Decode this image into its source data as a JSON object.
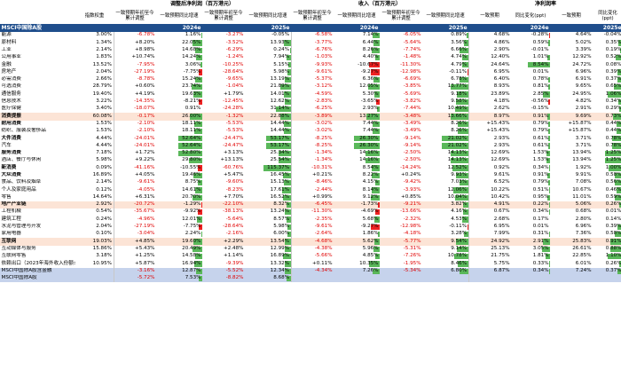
{
  "header": {
    "groups": [
      "调整后净利润（百万港元）",
      "收入（百万港元）",
      "净利润率"
    ],
    "col_label": "指数权重",
    "subheads": [
      "一致预期年初至今累计调整",
      "一致预期同比增速",
      "一致预期年初至今累计调整",
      "一致预期同比增速",
      "一致预期年初至今累计调整",
      "一致预期同比增速",
      "一致预期年初至今累计调整",
      "一致预期同比增速",
      "一致预期",
      "同比变化(ppt)",
      "一致预期",
      "同比变化(ppt)"
    ],
    "index_label": "MSCI中国除A股",
    "years": [
      "2024e",
      "2025e",
      "2024e",
      "2025e",
      "2024e",
      "2025e"
    ]
  },
  "rows": [
    {
      "name": "能源",
      "type": "n",
      "v": [
        "3.00%",
        "-6.78%",
        "1.16%",
        "-3.27%",
        "-0.05%",
        "-6.58%",
        "7.14%",
        "-6.05%",
        "0.89%",
        "4.68%",
        "-0.28%",
        "4.64%",
        "-0.04%"
      ]
    },
    {
      "name": "原材料",
      "type": "n",
      "v": [
        "1.34%",
        "+8.20%",
        "22.05%",
        "-3.52%",
        "13.93%",
        "-3.77%",
        "6.44%",
        "-5.64%",
        "3.56%",
        "4.86%",
        "0.59%",
        "5.02%",
        "0.35%"
      ]
    },
    {
      "name": "工业",
      "type": "n",
      "v": [
        "2.14%",
        "+8.98%",
        "14.68%",
        "-6.29%",
        "0.24%",
        "-6.76%",
        "8.26%",
        "-7.74%",
        "6.66%",
        "2.90%",
        "-0.01%",
        "3.39%",
        "0.19%"
      ]
    },
    {
      "name": "公用事业",
      "type": "n",
      "v": [
        "1.83%",
        "+10.74%",
        "14.24%",
        "-1.24%",
        "7.94%",
        "-1.03%",
        "4.40%",
        "-1.48%",
        "4.74%",
        "12.40%",
        "1.01%",
        "12.92%",
        "0.52%"
      ]
    },
    {
      "name": "金融",
      "type": "n",
      "v": [
        "13.52%",
        "-7.95%",
        "3.06%",
        "-10.25%",
        "5.15%",
        "-9.93%",
        "-10.67%",
        "-11.30%",
        "4.79%",
        "24.64%",
        "8.54%",
        "24.72%",
        "0.08%"
      ]
    },
    {
      "name": "房地产",
      "type": "n",
      "v": [
        "2.04%",
        "-27.19%",
        "-7.75%",
        "-28.64%",
        "5.98%",
        "-9.61%",
        "-9.27%",
        "-12.98%",
        "-0.11%",
        "6.95%",
        "0.01%",
        "6.96%",
        "0.39%"
      ]
    },
    {
      "name": "必需消费",
      "type": "n",
      "v": [
        "2.66%",
        "-8.78%",
        "15.24%",
        "-9.65%",
        "13.19%",
        "-5.37%",
        "6.36%",
        "-6.69%",
        "6.78%",
        "6.40%",
        "0.78%",
        "6.91%",
        "0.37%"
      ]
    },
    {
      "name": "可选消费",
      "type": "n",
      "v": [
        "28.79%",
        "+0.60%",
        "23.74%",
        "-1.04%",
        "21.89%",
        "-3.12%",
        "12.05%",
        "-3.85%",
        "13.77%",
        "8.93%",
        "0.81%",
        "9.65%",
        "0.65%"
      ]
    },
    {
      "name": "通信服务",
      "type": "n",
      "v": [
        "19.40%",
        "+4.19%",
        "19.63%",
        "+1.79%",
        "14.01%",
        "-4.59%",
        "5.30%",
        "-5.69%",
        "9.18%",
        "23.89%",
        "2.85%",
        "24.95%",
        "1.06%"
      ]
    },
    {
      "name": "信息技术",
      "type": "n",
      "v": [
        "3.22%",
        "-14.35%",
        "-8.21%",
        "-12.45%",
        "12.62%",
        "-2.83%",
        "-3.65%",
        "-3.82%",
        "9.58%",
        "4.18%",
        "-0.56%",
        "4.82%",
        "0.34%"
      ]
    },
    {
      "name": "医疗保健",
      "type": "n",
      "v": [
        "3.40%",
        "-18.07%",
        "0.91%",
        "-24.28%",
        "31.14%",
        "-6.25%",
        "2.93%",
        "-7.44%",
        "10.49%",
        "2.62%",
        "-0.15%",
        "2.91%",
        "0.29%"
      ]
    },
    {
      "name": "消费提振",
      "type": "h",
      "v": [
        "60.08%",
        "-0.17%",
        "26.00%",
        "-1.32%",
        "22.88%",
        "-3.89%",
        "13.27%",
        "-3.48%",
        "13.66%",
        "8.97%",
        "0.91%",
        "9.69%",
        "0.73%"
      ]
    },
    {
      "name": "耐用消费",
      "type": "s",
      "v": [
        "1.53%",
        "-2.10%",
        "18.11%",
        "-5.53%",
        "14.44%",
        "-3.02%",
        "7.44%",
        "-3.49%",
        "8.26%",
        "+15.43%",
        "0.79%",
        "+15.87%",
        "0.44%"
      ]
    },
    {
      "name": "纺织、服装及奢侈品",
      "type": "n",
      "v": [
        "1.53%",
        "-2.10%",
        "18.11%",
        "-5.53%",
        "14.44%",
        "-3.02%",
        "7.44%",
        "-3.49%",
        "8.26%",
        "+15.43%",
        "0.79%",
        "+15.87%",
        "0.44%"
      ]
    },
    {
      "name": "大件消费",
      "type": "s",
      "v": [
        "4.44%",
        "-24.01%",
        "52.64%",
        "-24.47%",
        "53.17%",
        "-8.25%",
        "26.30%",
        "-9.14%",
        "21.02%",
        "2.93%",
        "0.61%",
        "3.71%",
        "0.78%"
      ]
    },
    {
      "name": "汽车",
      "type": "n",
      "v": [
        "4.44%",
        "-24.01%",
        "52.64%",
        "-24.47%",
        "53.17%",
        "-8.25%",
        "26.30%",
        "-9.14%",
        "21.02%",
        "2.93%",
        "0.61%",
        "3.71%",
        "0.78%"
      ]
    },
    {
      "name": "服务消费",
      "type": "s",
      "v": [
        "7.18%",
        "+1.72%",
        "52.80%",
        "+3.13%",
        "25.34%",
        "-1.34%",
        "14.16%",
        "-2.50%",
        "14.13%",
        "12.69%",
        "1.53%",
        "13.94%",
        "1.25%"
      ]
    },
    {
      "name": "酒店、餐厅与休闲",
      "type": "n",
      "v": [
        "5.98%",
        "+9.22%",
        "29.80%",
        "+13.13%",
        "25.54%",
        "-1.34%",
        "14.16%",
        "-2.50%",
        "14.13%",
        "12.69%",
        "1.53%",
        "13.94%",
        "1.25%"
      ]
    },
    {
      "name": "新消费",
      "type": "s",
      "v": [
        "0.09%",
        "-41.16%",
        "-10.55%",
        "-60.76%",
        "115.37%",
        "-10.31%",
        "8.54%",
        "-14.24%",
        "12.52%",
        "0.92%",
        "0.34%",
        "1.92%",
        "1.00%"
      ]
    },
    {
      "name": "大众消费",
      "type": "s",
      "v": [
        "16.89%",
        "+4.05%",
        "19.46%",
        "+5.47%",
        "16.45%",
        "+0.21%",
        "8.22%",
        "+0.24%",
        "9.93%",
        "9.61%",
        "0.91%",
        "9.91%",
        "0.58%"
      ]
    },
    {
      "name": "食品、饮料及烟草",
      "type": "n",
      "v": [
        "2.14%",
        "-9.61%",
        "8.75%",
        "-9.60%",
        "15.13%",
        "-8.46%",
        "4.15%",
        "-9.42%",
        "7.03%",
        "6.52%",
        "0.79%",
        "7.08%",
        "0.56%"
      ]
    },
    {
      "name": "个人及家庭用品",
      "type": "n",
      "v": [
        "0.12%",
        "-4.05%",
        "14.61%",
        "-8.23%",
        "17.61%",
        "-2.44%",
        "8.14%",
        "-3.93%",
        "12.06%",
        "10.22%",
        "0.51%",
        "10.67%",
        "0.46%"
      ]
    },
    {
      "name": "零售",
      "type": "n",
      "v": [
        "14.64%",
        "+6.31%",
        "20.70%",
        "+7.70%",
        "16.52%",
        "+0.99%",
        "9.12%",
        "+0.85%",
        "10.04%",
        "10.42%",
        "0.95%",
        "11.01%",
        "0.59%"
      ]
    },
    {
      "name": "地产产业链",
      "type": "h",
      "v": [
        "2.92%",
        "-20.72%",
        "-1.29%",
        "-22.10%",
        "8.32%",
        "-6.45%",
        "-1.73%",
        "-9.21%",
        "3.82%",
        "4.91%",
        "0.22%",
        "5.06%",
        "0.26%"
      ]
    },
    {
      "name": "工程机械",
      "type": "n",
      "v": [
        "0.54%",
        "-35.67%",
        "-9.92%",
        "-38.13%",
        "13.24%",
        "-11.30%",
        "-4.69%",
        "-13.66%",
        "4.16%",
        "0.67%",
        "0.34%",
        "0.68%",
        "0.01%"
      ]
    },
    {
      "name": "建筑工程",
      "type": "n",
      "v": [
        "0.24%",
        "-4.96%",
        "12.01%",
        "-5.64%",
        "8.57%",
        "-2.35%",
        "5.68%",
        "-2.32%",
        "4.53%",
        "2.68%",
        "0.17%",
        "2.80%",
        "0.14%"
      ]
    },
    {
      "name": "水泥与管理与开发",
      "type": "n",
      "v": [
        "2.04%",
        "-27.19%",
        "-7.75%",
        "-28.64%",
        "5.98%",
        "-9.61%",
        "-9.27%",
        "-12.98%",
        "-0.11%",
        "6.95%",
        "0.01%",
        "6.96%",
        "0.39%"
      ]
    },
    {
      "name": "家用电器",
      "type": "n",
      "v": [
        "0.10%",
        "-3.04%",
        "2.24%",
        "-2.16%",
        "6.00%",
        "-2.64%",
        "1.86%",
        "-4.18%",
        "3.28%",
        "7.99%",
        "0.31%",
        "7.36%",
        "0.58%"
      ]
    },
    {
      "name": "互联网",
      "type": "h",
      "v": [
        "19.03%",
        "+4.85%",
        "19.60%",
        "+2.29%",
        "13.54%",
        "-4.68%",
        "5.62%",
        "-5.77%",
        "9.54%",
        "24.92%",
        "2.91%",
        "25.83%",
        "0.91%"
      ]
    },
    {
      "name": "互动媒体与服务",
      "type": "n",
      "v": [
        "15.86%",
        "+5.43%",
        "20.49%",
        "+2.48%",
        "12.99%",
        "-4.38%",
        "5.96%",
        "-5.31%",
        "9.14%",
        "25.13%",
        "3.05%",
        "26.61%",
        "0.88%"
      ]
    },
    {
      "name": "互联网零售",
      "type": "n",
      "v": [
        "3.18%",
        "+1.25%",
        "14.58%",
        "+1.14%",
        "16.89%",
        "-5.66%",
        "4.85%",
        "-7.26%",
        "10.78%",
        "21.75%",
        "1.81%",
        "22.85%",
        "1.10%"
      ]
    },
    {
      "name": "依赖出口（2023年海外收入份额>50%）",
      "type": "n",
      "v": [
        "10.95%",
        "+5.87%",
        "16.94%",
        "-9.39%",
        "13.32%",
        "+0.11%",
        "10.35%",
        "-1.95%",
        "8.46%",
        "5.75%",
        "0.33%",
        "6.01%",
        "0.26%"
      ]
    },
    {
      "name": "MSCI中国除A股含金融",
      "type": "f",
      "v": [
        "",
        "-3.16%",
        "12.87%",
        "-5.52%",
        "12.34%",
        "-4.34%",
        "7.26%",
        "-5.34%",
        "6.80%",
        "6.87%",
        "0.34%",
        "7.24%",
        "0.37%"
      ]
    },
    {
      "name": "MSCI中国除A股",
      "type": "f",
      "v": [
        "",
        "-5.72%",
        "7.53%",
        "-8.82%",
        "8.68%",
        "",
        "",
        "",
        "",
        "",
        "",
        "",
        ""
      ]
    }
  ],
  "colors": {
    "header": "#1f4e8c",
    "highlight": "#fce4d6",
    "footer": "#c6d3ec",
    "bar_green": "#5ab85a",
    "bar_red": "#ee2222"
  }
}
